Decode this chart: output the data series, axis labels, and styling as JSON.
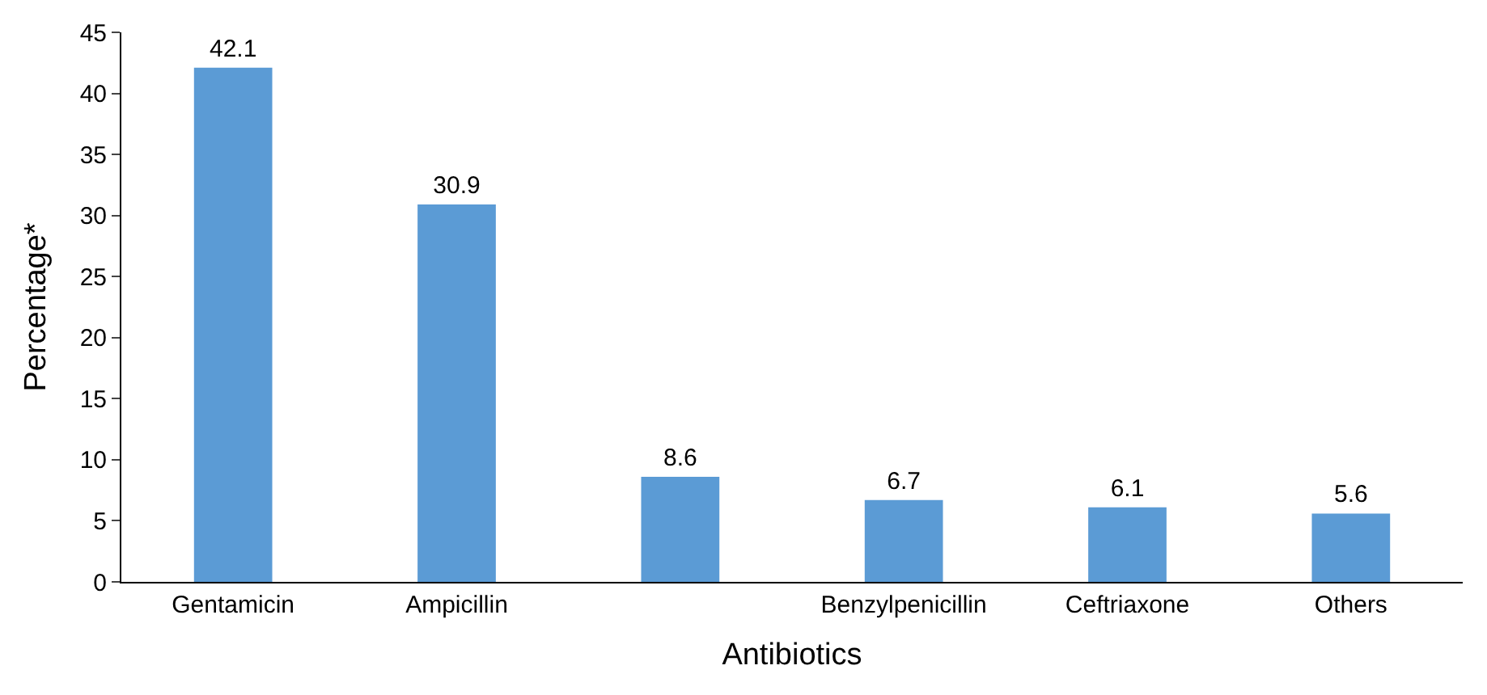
{
  "chart_data": {
    "type": "bar",
    "xlabel": "Antibiotics",
    "ylabel": "Percentage*",
    "categories": [
      "Gentamicin",
      "Ampicillin",
      null,
      "Benzylpenicillin",
      "Ceftriaxone",
      "Others"
    ],
    "values": [
      42.1,
      30.9,
      8.6,
      6.7,
      6.1,
      5.6
    ],
    "color": "#5b9bd5",
    "ylim": [
      0,
      45
    ],
    "yticks": [
      0,
      5,
      10,
      15,
      20,
      25,
      30,
      35,
      40,
      45
    ],
    "data_labels": true
  }
}
